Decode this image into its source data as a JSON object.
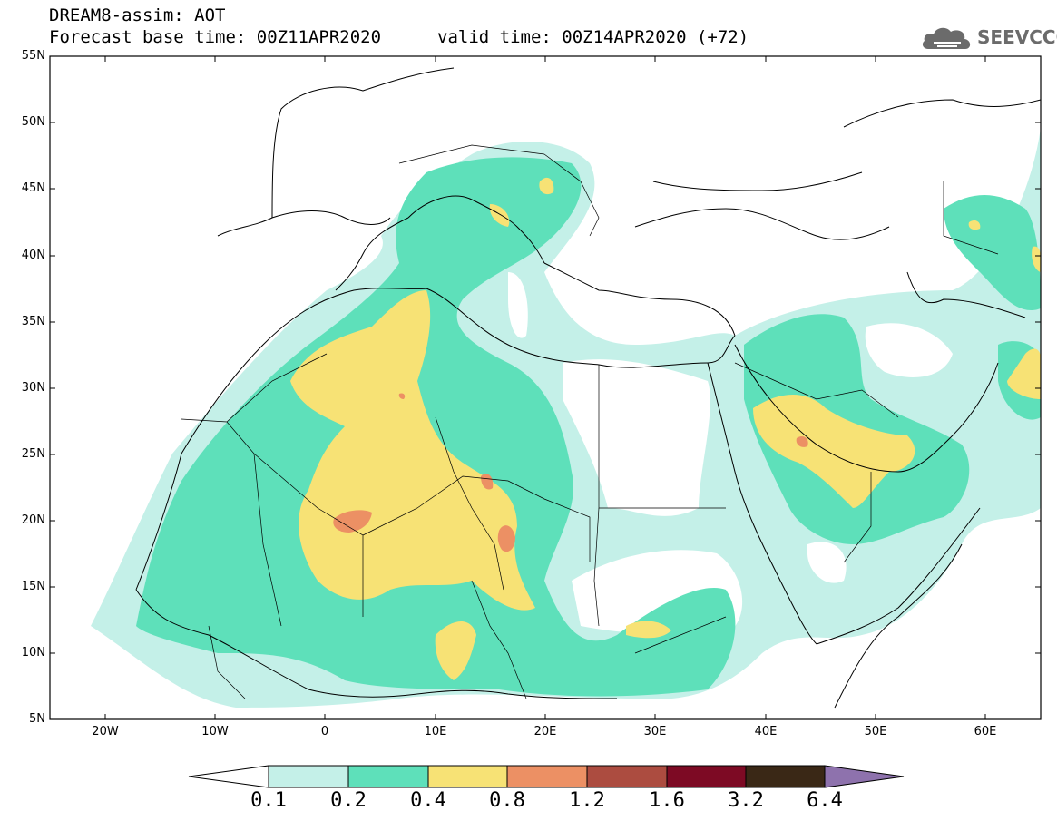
{
  "title": {
    "line1": "DREAM8-assim: AOT",
    "line2": "Forecast base time: 00Z11APR2020",
    "valid": "valid time: 00Z14APR2020 (+72)"
  },
  "logo": {
    "text": "SEEVCCC",
    "icon": "cloud-icon"
  },
  "axes": {
    "lat_labels": [
      "55N",
      "50N",
      "45N",
      "40N",
      "35N",
      "30N",
      "25N",
      "20N",
      "15N",
      "10N",
      "5N"
    ],
    "lon_labels": [
      "20W",
      "10W",
      "0",
      "10E",
      "20E",
      "30E",
      "40E",
      "50E",
      "60E"
    ]
  },
  "colorbar": {
    "labels": [
      "0.1",
      "0.2",
      "0.4",
      "0.8",
      "1.2",
      "1.6",
      "3.2",
      "6.4"
    ],
    "colors": [
      "#ffffff",
      "#c4f0e8",
      "#5ee0ba",
      "#f7e275",
      "#ec9064",
      "#ac4c40",
      "#7d0a24",
      "#3a2816",
      "#8e72ad"
    ]
  },
  "map": {
    "type": "aerosol-optical-thickness",
    "lon_range": [
      -25,
      65
    ],
    "lat_range": [
      5,
      55
    ],
    "colors": {
      "light": "#c4f0e8",
      "teal": "#5ee0ba",
      "yellow": "#f7e275",
      "orange": "#ec9064",
      "coast": "#000000"
    }
  }
}
